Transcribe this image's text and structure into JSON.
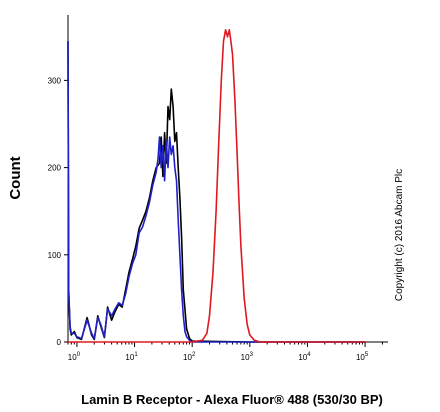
{
  "chart_data": {
    "type": "line",
    "title": "",
    "xlabel": "Lamin B Receptor - Alexa Fluor® 488 (530/30 BP)",
    "ylabel": "Count",
    "xscale": "log",
    "xlim": [
      0.7,
      250000
    ],
    "ylim": [
      0,
      375
    ],
    "yticks": [
      0,
      100,
      200,
      300
    ],
    "xticks": [
      {
        "value": 1,
        "label": "10",
        "exp": "0"
      },
      {
        "value": 10,
        "label": "10",
        "exp": "1"
      },
      {
        "value": 100,
        "label": "10",
        "exp": "2"
      },
      {
        "value": 1000,
        "label": "10",
        "exp": "3"
      },
      {
        "value": 10000,
        "label": "10",
        "exp": "4"
      },
      {
        "value": 100000,
        "label": "10",
        "exp": "5"
      }
    ],
    "legend": "none",
    "annotation": "Copyright (c) 2016 Abcam Plc",
    "series": [
      {
        "color": "#000000",
        "x": [
          0.7,
          0.72,
          0.76,
          0.8,
          0.9,
          1.0,
          1.2,
          1.5,
          1.8,
          2.0,
          2.3,
          2.6,
          3.0,
          3.4,
          4.0,
          4.6,
          5.3,
          6.1,
          7.0,
          8.0,
          9.2,
          10.5,
          12.0,
          13.8,
          15.8,
          18.1,
          20.7,
          23.7,
          27.1,
          29.0,
          31.0,
          33.2,
          35.5,
          38.0,
          40.7,
          43.5,
          46.6,
          49.9,
          53.4,
          57.1,
          61.1,
          65.4,
          70.0,
          80.0,
          90.0,
          100.0,
          1000.0,
          100000.0
        ],
        "y": [
          345,
          60,
          15,
          8,
          12,
          5,
          3,
          28,
          8,
          3,
          30,
          18,
          5,
          40,
          25,
          35,
          43,
          40,
          60,
          80,
          95,
          110,
          130,
          140,
          150,
          165,
          185,
          200,
          205,
          235,
          190,
          240,
          205,
          270,
          255,
          290,
          270,
          230,
          240,
          200,
          165,
          120,
          60,
          15,
          4,
          1,
          0,
          0
        ]
      },
      {
        "color": "#2020c8",
        "x": [
          0.7,
          0.72,
          0.76,
          0.8,
          0.9,
          1.0,
          1.2,
          1.5,
          1.8,
          2.0,
          2.3,
          2.6,
          3.0,
          3.4,
          4.0,
          4.6,
          5.3,
          6.1,
          7.0,
          8.0,
          9.2,
          10.5,
          12.0,
          13.8,
          15.8,
          18.1,
          20.7,
          23.7,
          25.5,
          27.1,
          29.0,
          31.0,
          33.2,
          35.5,
          38.0,
          40.7,
          43.5,
          46.6,
          49.9,
          53.4,
          57.1,
          61.1,
          65.4,
          70.0,
          75.0,
          80.0,
          90.0,
          100.0,
          1000.0,
          100000.0
        ],
        "y": [
          345,
          55,
          18,
          10,
          10,
          6,
          4,
          25,
          10,
          4,
          28,
          20,
          6,
          38,
          30,
          38,
          45,
          42,
          55,
          75,
          90,
          100,
          125,
          132,
          145,
          160,
          180,
          195,
          210,
          235,
          200,
          225,
          185,
          230,
          200,
          235,
          215,
          225,
          200,
          185,
          140,
          100,
          60,
          30,
          12,
          6,
          2,
          0,
          0,
          0
        ]
      },
      {
        "color": "#e01820",
        "x": [
          0.7,
          100.0,
          150.0,
          180.0,
          200.0,
          230.0,
          260.0,
          290.0,
          320.0,
          350.0,
          380.0,
          410.0,
          440.0,
          470.0,
          500.0,
          550.0,
          600.0,
          650.0,
          700.0,
          800.0,
          900.0,
          1000.0,
          1200.0,
          1500.0,
          100000.0
        ],
        "y": [
          0,
          0,
          2,
          10,
          30,
          80,
          150,
          230,
          300,
          345,
          358,
          350,
          358,
          345,
          330,
          280,
          220,
          160,
          110,
          50,
          20,
          8,
          2,
          0,
          0
        ]
      }
    ]
  }
}
